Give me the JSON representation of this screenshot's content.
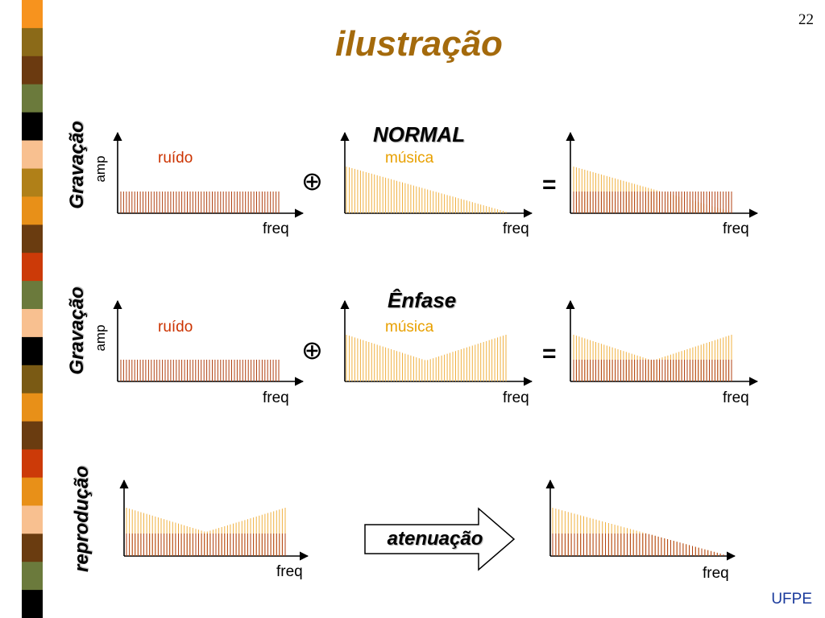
{
  "slide": {
    "title": "ilustração",
    "page_number": "22",
    "footer": "UFPE"
  },
  "colors": {
    "noise": "#b04010",
    "music": "#f0b040",
    "title": "#a46a0c",
    "footer": "#1a3a9c",
    "strip": [
      "#f7931e",
      "#8b6a18",
      "#6b3a10",
      "#6b7a3c",
      "#000000",
      "#f8c090",
      "#b08018",
      "#e89018",
      "#6a3c10",
      "#cc3a08",
      "#6b7a3c",
      "#f8c090",
      "#000000",
      "#7a5a14",
      "#e89018",
      "#6a3c10",
      "#cc3a08",
      "#e89018",
      "#f8c090",
      "#6a3c10",
      "#6b7a3c",
      "#000000"
    ]
  },
  "rows": [
    {
      "side_label": "Gravação",
      "heading": "NORMAL",
      "amp_label": "amp",
      "noise_label": "ruído",
      "music_label": "música",
      "operator": "⊕",
      "equals": "=",
      "freq_labels": [
        "freq",
        "freq",
        "freq"
      ],
      "music_shape": "descending"
    },
    {
      "side_label": "Gravação",
      "heading": "Ênfase",
      "amp_label": "amp",
      "noise_label": "ruído",
      "music_label": "música",
      "operator": "⊕",
      "equals": "=",
      "freq_labels": [
        "freq",
        "freq",
        "freq"
      ],
      "music_shape": "v-shape"
    },
    {
      "side_label": "reprodução",
      "arrow_label": "atenuação",
      "freq_labels": [
        "freq",
        "freq"
      ],
      "music_shape": "v-to-descending"
    }
  ]
}
